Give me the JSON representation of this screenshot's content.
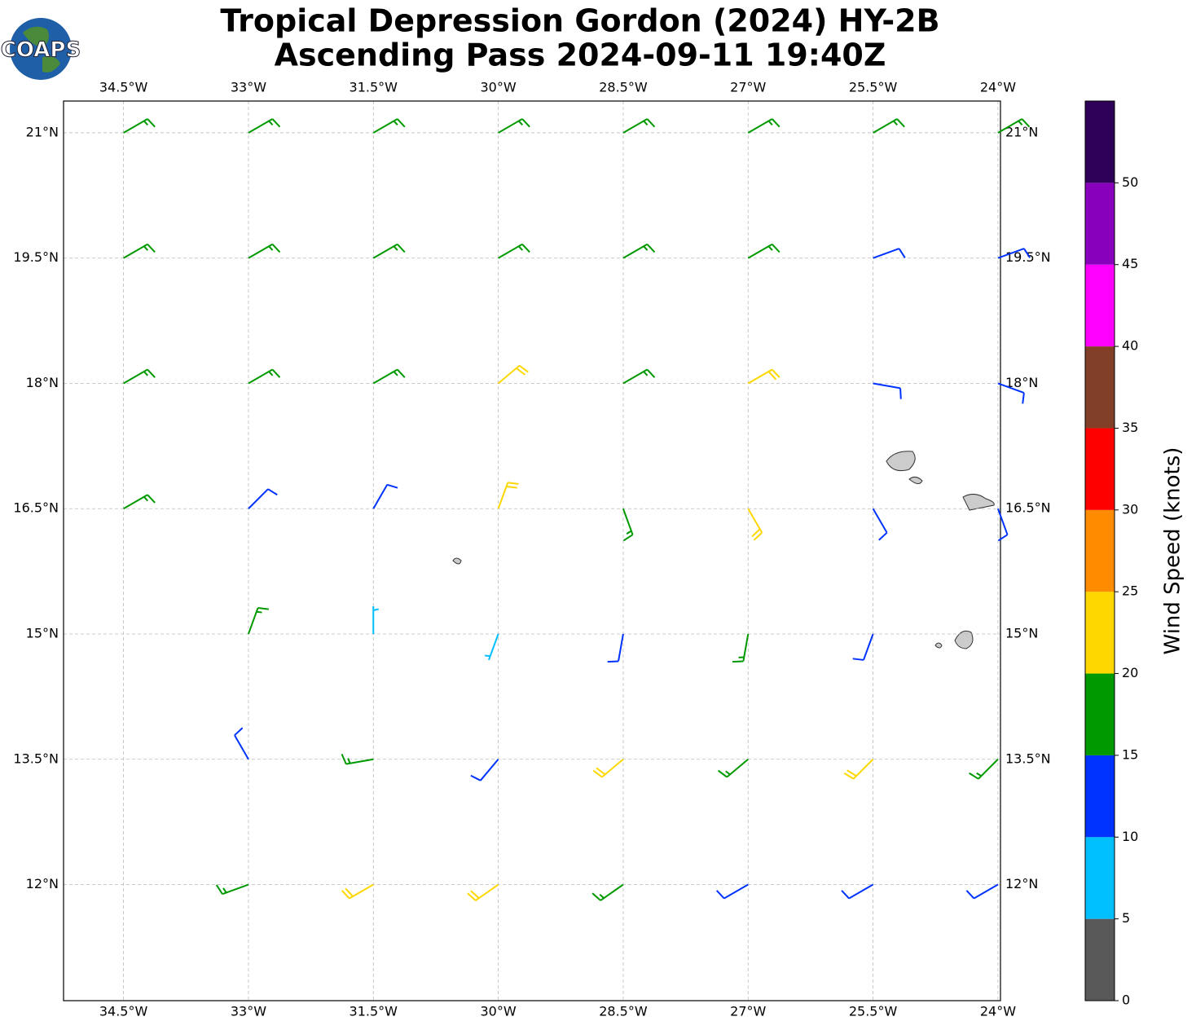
{
  "chart_data": {
    "type": "barbs",
    "title": "Tropical Depression Gordon (2024) HY-2B",
    "subtitle": "Ascending Pass 2024-09-11 19:40Z",
    "logo": "COAPS",
    "xlim": [
      -35.22,
      -23.97
    ],
    "ylim": [
      10.61,
      21.38
    ],
    "xticks": [
      {
        "value": -34.5,
        "label": "34.5°W"
      },
      {
        "value": -33,
        "label": "33°W"
      },
      {
        "value": -31.5,
        "label": "31.5°W"
      },
      {
        "value": -30,
        "label": "30°W"
      },
      {
        "value": -28.5,
        "label": "28.5°W"
      },
      {
        "value": -27,
        "label": "27°W"
      },
      {
        "value": -25.5,
        "label": "25.5°W"
      },
      {
        "value": -24,
        "label": "24°W"
      }
    ],
    "yticks": [
      {
        "value": 21,
        "label": "21°N"
      },
      {
        "value": 19.5,
        "label": "19.5°N"
      },
      {
        "value": 18,
        "label": "18°N"
      },
      {
        "value": 16.5,
        "label": "16.5°N"
      },
      {
        "value": 15,
        "label": "15°N"
      },
      {
        "value": 13.5,
        "label": "13.5°N"
      },
      {
        "value": 12,
        "label": "12°N"
      }
    ],
    "grid": true,
    "lats": [
      21,
      19.5,
      18,
      16.5,
      15,
      13.5,
      12
    ],
    "lons": [
      -34.5,
      -33,
      -31.5,
      -30,
      -28.5,
      -27,
      -25.5,
      -24
    ],
    "speed": [
      [
        17,
        17,
        17,
        17,
        17,
        17,
        17,
        17
      ],
      [
        17,
        17,
        17,
        17,
        17,
        17,
        12,
        12
      ],
      [
        17,
        17,
        17,
        21,
        18,
        21,
        12,
        12
      ],
      [
        17,
        13,
        12,
        22,
        18,
        21,
        12,
        12
      ],
      [
        null,
        16,
        8,
        9,
        13,
        16,
        12,
        null
      ],
      [
        null,
        12,
        16,
        13,
        22,
        18,
        22,
        17
      ],
      [
        null,
        16,
        22,
        21,
        17,
        13,
        12,
        12
      ]
    ],
    "direction": [
      [
        60,
        60,
        60,
        60,
        60,
        60,
        60,
        60
      ],
      [
        60,
        60,
        60,
        60,
        60,
        60,
        70,
        70
      ],
      [
        60,
        60,
        60,
        50,
        60,
        60,
        100,
        110
      ],
      [
        60,
        45,
        30,
        20,
        160,
        150,
        150,
        160
      ],
      [
        null,
        20,
        0,
        200,
        190,
        190,
        200,
        null
      ],
      [
        null,
        330,
        260,
        220,
        230,
        230,
        225,
        225
      ],
      [
        null,
        250,
        240,
        235,
        235,
        240,
        240,
        240
      ]
    ],
    "colorbar": {
      "label": "Wind Speed (knots)",
      "clim": [
        0,
        55
      ],
      "bounds": [
        0,
        5,
        10,
        15,
        20,
        25,
        30,
        35,
        40,
        45,
        50,
        55
      ],
      "colors": [
        "#595959",
        "#00bfff",
        "#0033ff",
        "#009900",
        "#ffd700",
        "#ff8c00",
        "#ff0000",
        "#803f26",
        "#ff00ff",
        "#8800bb",
        "#2e0057"
      ],
      "ticks": [
        0,
        5,
        10,
        15,
        20,
        25,
        30,
        35,
        40,
        45,
        50
      ]
    }
  }
}
